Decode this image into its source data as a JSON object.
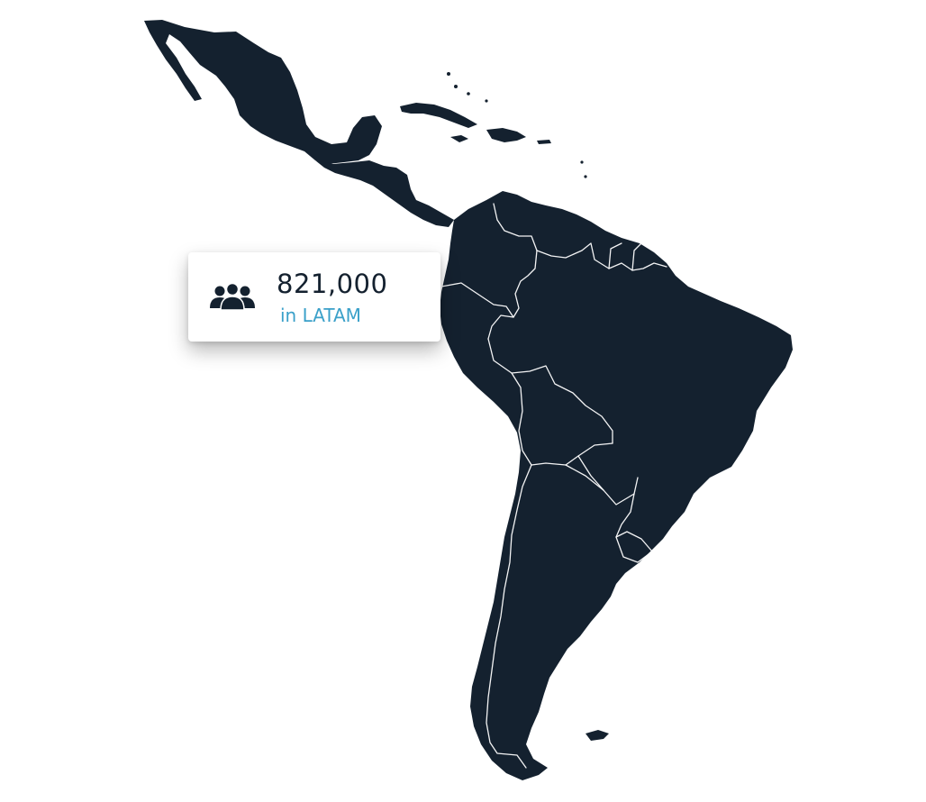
{
  "stat_card": {
    "count": "821,000",
    "label": "in LATAM",
    "icon": "people-group-icon"
  },
  "map": {
    "region": "Latin America",
    "land_color": "#14212f",
    "border_color": "#ffffff"
  },
  "colors": {
    "count_text": "#14212f",
    "label_text": "#3aa0c9",
    "card_background": "#ffffff"
  }
}
